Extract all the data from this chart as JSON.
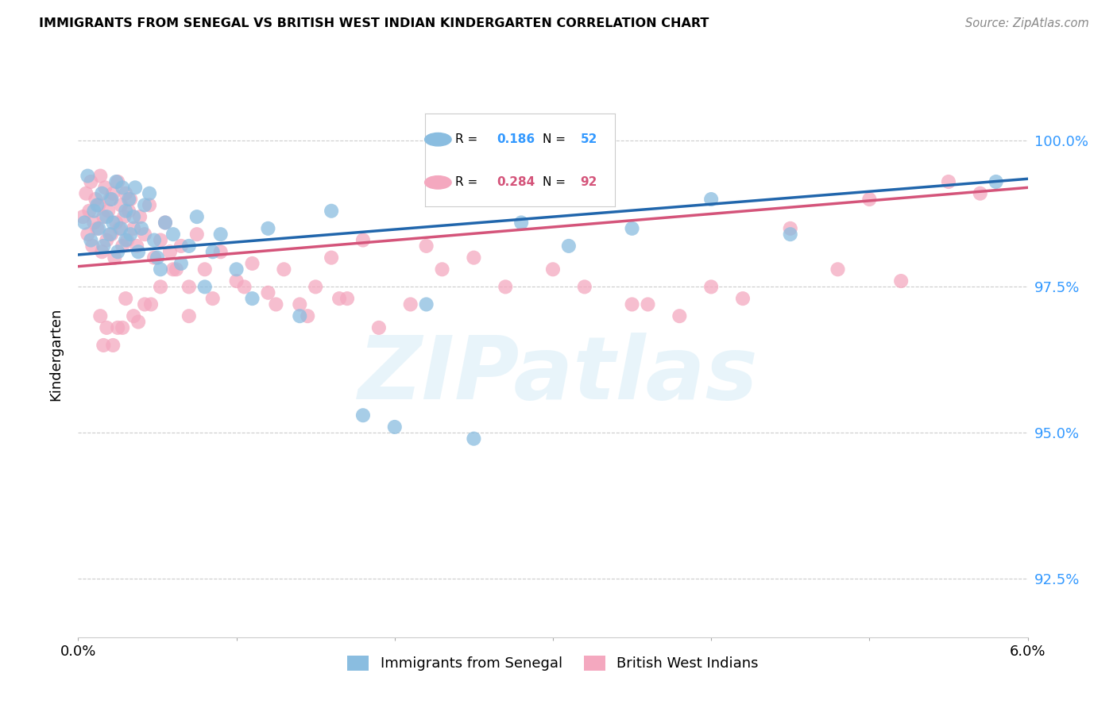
{
  "title": "IMMIGRANTS FROM SENEGAL VS BRITISH WEST INDIAN KINDERGARTEN CORRELATION CHART",
  "source": "Source: ZipAtlas.com",
  "ylabel": "Kindergarten",
  "x_min": 0.0,
  "x_max": 6.0,
  "y_min": 91.5,
  "y_max": 101.2,
  "y_ticks": [
    92.5,
    95.0,
    97.5,
    100.0
  ],
  "y_tick_labels": [
    "92.5%",
    "95.0%",
    "97.5%",
    "100.0%"
  ],
  "x_ticks": [
    0.0,
    1.0,
    2.0,
    3.0,
    4.0,
    5.0,
    6.0
  ],
  "x_tick_labels": [
    "0.0%",
    "",
    "",
    "",
    "",
    "",
    "6.0%"
  ],
  "blue_R": 0.186,
  "blue_N": 52,
  "pink_R": 0.284,
  "pink_N": 92,
  "blue_color": "#8abde0",
  "pink_color": "#f4a8bf",
  "blue_line_color": "#2166ac",
  "pink_line_color": "#d4547a",
  "legend_label_blue": "Immigrants from Senegal",
  "legend_label_pink": "British West Indians",
  "blue_line_x0": 0.0,
  "blue_line_y0": 98.05,
  "blue_line_x1": 6.0,
  "blue_line_y1": 99.35,
  "pink_line_x0": 0.0,
  "pink_line_y0": 97.85,
  "pink_line_x1": 6.0,
  "pink_line_y1": 99.2,
  "blue_scatter_x": [
    0.04,
    0.06,
    0.08,
    0.1,
    0.12,
    0.13,
    0.15,
    0.16,
    0.18,
    0.2,
    0.21,
    0.22,
    0.24,
    0.25,
    0.27,
    0.28,
    0.3,
    0.3,
    0.32,
    0.33,
    0.35,
    0.36,
    0.38,
    0.4,
    0.42,
    0.45,
    0.48,
    0.5,
    0.52,
    0.55,
    0.6,
    0.65,
    0.7,
    0.75,
    0.8,
    0.85,
    0.9,
    1.0,
    1.1,
    1.2,
    1.4,
    1.6,
    1.8,
    2.0,
    2.2,
    2.5,
    2.8,
    3.1,
    3.5,
    4.0,
    4.5,
    5.8
  ],
  "blue_scatter_y": [
    98.6,
    99.4,
    98.3,
    98.8,
    98.9,
    98.5,
    99.1,
    98.2,
    98.7,
    98.4,
    99.0,
    98.6,
    99.3,
    98.1,
    98.5,
    99.2,
    98.3,
    98.8,
    99.0,
    98.4,
    98.7,
    99.2,
    98.1,
    98.5,
    98.9,
    99.1,
    98.3,
    98.0,
    97.8,
    98.6,
    98.4,
    97.9,
    98.2,
    98.7,
    97.5,
    98.1,
    98.4,
    97.8,
    97.3,
    98.5,
    97.0,
    98.8,
    95.3,
    95.1,
    97.2,
    94.9,
    98.6,
    98.2,
    98.5,
    99.0,
    98.4,
    99.3
  ],
  "pink_scatter_x": [
    0.03,
    0.05,
    0.06,
    0.07,
    0.08,
    0.09,
    0.1,
    0.11,
    0.12,
    0.13,
    0.14,
    0.15,
    0.16,
    0.17,
    0.18,
    0.19,
    0.2,
    0.21,
    0.22,
    0.23,
    0.24,
    0.25,
    0.26,
    0.27,
    0.28,
    0.29,
    0.3,
    0.31,
    0.32,
    0.33,
    0.35,
    0.37,
    0.39,
    0.42,
    0.45,
    0.48,
    0.52,
    0.55,
    0.58,
    0.62,
    0.65,
    0.7,
    0.75,
    0.8,
    0.85,
    0.9,
    1.0,
    1.1,
    1.2,
    1.3,
    1.4,
    1.5,
    1.6,
    1.7,
    1.8,
    1.9,
    2.1,
    2.3,
    2.5,
    2.7,
    3.0,
    3.2,
    3.5,
    3.8,
    4.0,
    4.2,
    4.5,
    4.8,
    5.0,
    5.2,
    5.5,
    5.7,
    0.14,
    0.22,
    0.3,
    0.18,
    0.25,
    0.35,
    0.42,
    0.28,
    0.16,
    0.38,
    0.46,
    0.52,
    0.6,
    0.7,
    1.05,
    1.25,
    1.45,
    1.65,
    2.2,
    3.6
  ],
  "pink_scatter_y": [
    98.7,
    99.1,
    98.4,
    98.8,
    99.3,
    98.2,
    98.6,
    99.0,
    98.5,
    98.9,
    99.4,
    98.1,
    98.7,
    99.2,
    98.3,
    98.8,
    99.0,
    98.4,
    99.1,
    98.0,
    98.6,
    99.3,
    98.5,
    98.9,
    98.2,
    98.7,
    99.1,
    98.3,
    98.8,
    99.0,
    98.5,
    98.2,
    98.7,
    98.4,
    98.9,
    98.0,
    98.3,
    98.6,
    98.1,
    97.8,
    98.2,
    97.5,
    98.4,
    97.8,
    97.3,
    98.1,
    97.6,
    97.9,
    97.4,
    97.8,
    97.2,
    97.5,
    98.0,
    97.3,
    98.3,
    96.8,
    97.2,
    97.8,
    98.0,
    97.5,
    97.8,
    97.5,
    97.2,
    97.0,
    97.5,
    97.3,
    98.5,
    97.8,
    99.0,
    97.6,
    99.3,
    99.1,
    97.0,
    96.5,
    97.3,
    96.8,
    96.8,
    97.0,
    97.2,
    96.8,
    96.5,
    96.9,
    97.2,
    97.5,
    97.8,
    97.0,
    97.5,
    97.2,
    97.0,
    97.3,
    98.2,
    97.2
  ]
}
